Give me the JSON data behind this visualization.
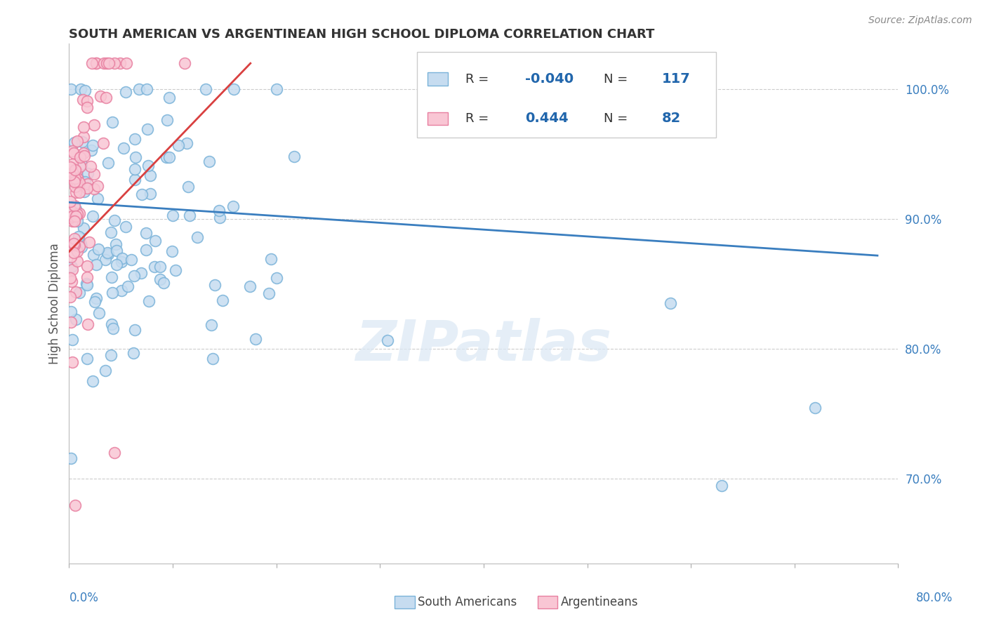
{
  "title": "SOUTH AMERICAN VS ARGENTINEAN HIGH SCHOOL DIPLOMA CORRELATION CHART",
  "source": "Source: ZipAtlas.com",
  "ylabel": "High School Diploma",
  "xlim": [
    0.0,
    0.8
  ],
  "ylim": [
    0.635,
    1.035
  ],
  "yticks": [
    0.7,
    0.8,
    0.9,
    1.0
  ],
  "ytick_labels": [
    "70.0%",
    "80.0%",
    "90.0%",
    "100.0%"
  ],
  "color_blue_face": "#c6dcf0",
  "color_blue_edge": "#7ab3d9",
  "color_pink_face": "#f9c6d4",
  "color_pink_edge": "#e87fa0",
  "color_trend_blue": "#3a7ebf",
  "color_trend_red": "#d94040",
  "watermark": "ZIPatlas",
  "title_fontsize": 13,
  "source_fontsize": 10,
  "ytick_fontsize": 12,
  "ylabel_fontsize": 12,
  "sa_trend_x": [
    0.0,
    0.78
  ],
  "sa_trend_y": [
    0.913,
    0.872
  ],
  "ar_trend_x": [
    0.0,
    0.175
  ],
  "ar_trend_y": [
    0.875,
    1.02
  ]
}
